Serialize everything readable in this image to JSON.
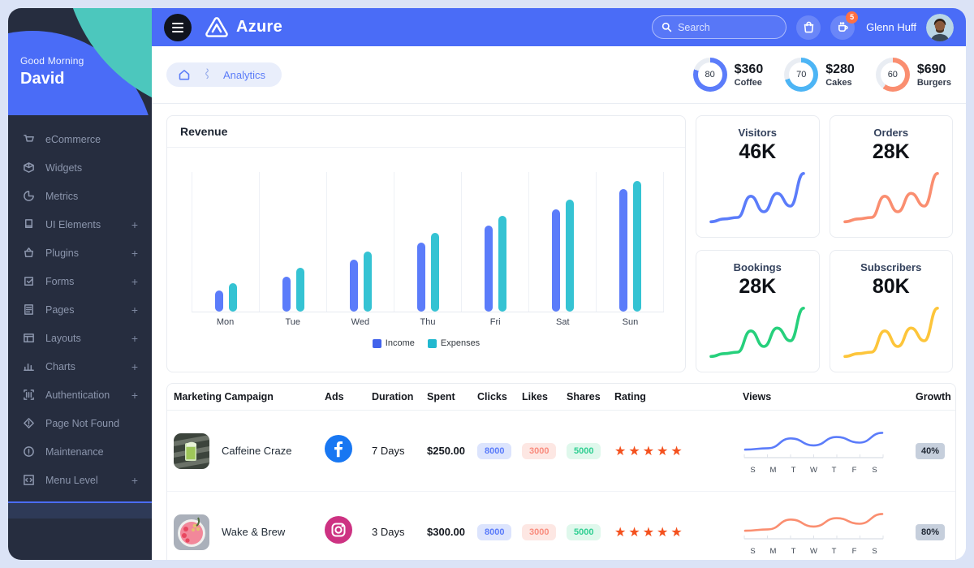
{
  "topbar": {
    "brand": "Azure",
    "search_placeholder": "Search",
    "cart_badge": "5",
    "user_name": "Glenn Huff"
  },
  "sidebar": {
    "greeting": "Good Morning",
    "user": "David",
    "items": [
      {
        "label": "eCommerce",
        "expandable": false
      },
      {
        "label": "Widgets",
        "expandable": false
      },
      {
        "label": "Metrics",
        "expandable": false
      },
      {
        "label": "UI Elements",
        "expandable": true
      },
      {
        "label": "Plugins",
        "expandable": true
      },
      {
        "label": "Forms",
        "expandable": true
      },
      {
        "label": "Pages",
        "expandable": true
      },
      {
        "label": "Layouts",
        "expandable": true
      },
      {
        "label": "Charts",
        "expandable": true
      },
      {
        "label": "Authentication",
        "expandable": true
      },
      {
        "label": "Page Not Found",
        "expandable": false
      },
      {
        "label": "Maintenance",
        "expandable": false
      },
      {
        "label": "Menu Level",
        "expandable": true
      }
    ],
    "plus_glyph": "+"
  },
  "breadcrumb": {
    "page": "Analytics"
  },
  "summary_donuts": [
    {
      "percent": 80,
      "value": "$360",
      "label": "Coffee",
      "color": "#5b7cfa"
    },
    {
      "percent": 70,
      "value": "$280",
      "label": "Cakes",
      "color": "#4db5f5"
    },
    {
      "percent": 60,
      "value": "$690",
      "label": "Burgers",
      "color": "#fa8e70"
    }
  ],
  "revenue": {
    "title": "Revenue",
    "categories": [
      "Mon",
      "Tue",
      "Wed",
      "Thu",
      "Fri",
      "Sat",
      "Sun"
    ],
    "series": [
      {
        "name": "Income",
        "color": "#4263eb",
        "bar_color": "#5b7cfa",
        "values": [
          15,
          25,
          37,
          49,
          61,
          73,
          87
        ]
      },
      {
        "name": "Expenses",
        "color": "#22b8cf",
        "bar_color": "#35c3d3",
        "values": [
          20,
          31,
          43,
          56,
          68,
          80,
          93
        ]
      }
    ],
    "max": 100
  },
  "stat_cards": [
    {
      "label": "Visitors",
      "value": "46K",
      "color": "#5b7cfa",
      "points": [
        10,
        14,
        16,
        46,
        24,
        50,
        32,
        78
      ]
    },
    {
      "label": "Orders",
      "value": "28K",
      "color": "#fa8e70",
      "points": [
        10,
        14,
        16,
        46,
        24,
        50,
        32,
        78
      ]
    },
    {
      "label": "Bookings",
      "value": "28K",
      "color": "#26d07c",
      "points": [
        10,
        14,
        16,
        46,
        24,
        50,
        32,
        78
      ]
    },
    {
      "label": "Subscribers",
      "value": "80K",
      "color": "#fdc53a",
      "points": [
        10,
        14,
        16,
        46,
        24,
        50,
        32,
        78
      ]
    }
  ],
  "table": {
    "headers": [
      "Marketing Campaign",
      "Ads",
      "Duration",
      "Spent",
      "Clicks",
      "Likes",
      "Shares",
      "Rating",
      "Views",
      "Growth"
    ],
    "days": [
      "S",
      "M",
      "T",
      "W",
      "T",
      "F",
      "S"
    ],
    "badge_styles": {
      "clicks": {
        "bg": "#dce4fd",
        "fg": "#5b7cfa"
      },
      "likes": {
        "bg": "#fde7e3",
        "fg": "#f98d7f"
      },
      "shares": {
        "bg": "#dff8ec",
        "fg": "#2fcf92"
      }
    },
    "star_color": "#f4511e",
    "rows": [
      {
        "name": "Caffeine Craze",
        "network": "facebook",
        "duration": "7 Days",
        "spent": "$250.00",
        "clicks": "8000",
        "likes": "3000",
        "shares": "5000",
        "rating": 5,
        "growth": "40%",
        "spark_color": "#5b7cfa",
        "views_points": [
          8,
          10,
          24,
          14,
          26,
          18,
          32
        ]
      },
      {
        "name": "Wake & Brew",
        "network": "instagram",
        "duration": "3 Days",
        "spent": "$300.00",
        "clicks": "8000",
        "likes": "3000",
        "shares": "5000",
        "rating": 5,
        "growth": "80%",
        "spark_color": "#fa8e70",
        "views_points": [
          8,
          10,
          24,
          14,
          26,
          18,
          32
        ]
      }
    ]
  },
  "chart_data": [
    {
      "type": "bar",
      "title": "Revenue",
      "categories": [
        "Mon",
        "Tue",
        "Wed",
        "Thu",
        "Fri",
        "Sat",
        "Sun"
      ],
      "series": [
        {
          "name": "Income",
          "values": [
            15,
            25,
            37,
            49,
            61,
            73,
            87
          ]
        },
        {
          "name": "Expenses",
          "values": [
            20,
            31,
            43,
            56,
            68,
            80,
            93
          ]
        }
      ],
      "xlabel": "",
      "ylabel": "",
      "ylim": [
        0,
        100
      ],
      "grid": "vertical",
      "legend_position": "bottom"
    },
    {
      "type": "pie",
      "title": "Coffee",
      "values": [
        80,
        20
      ],
      "labels": [
        "done",
        "rest"
      ],
      "center_label": "80",
      "amount": "$360"
    },
    {
      "type": "pie",
      "title": "Cakes",
      "values": [
        70,
        30
      ],
      "labels": [
        "done",
        "rest"
      ],
      "center_label": "70",
      "amount": "$280"
    },
    {
      "type": "pie",
      "title": "Burgers",
      "values": [
        60,
        40
      ],
      "labels": [
        "done",
        "rest"
      ],
      "center_label": "60",
      "amount": "$690"
    },
    {
      "type": "line",
      "title": "Visitors",
      "x": [
        1,
        2,
        3,
        4,
        5,
        6,
        7,
        8
      ],
      "values": [
        10,
        14,
        16,
        46,
        24,
        50,
        32,
        78
      ]
    },
    {
      "type": "line",
      "title": "Orders",
      "x": [
        1,
        2,
        3,
        4,
        5,
        6,
        7,
        8
      ],
      "values": [
        10,
        14,
        16,
        46,
        24,
        50,
        32,
        78
      ]
    },
    {
      "type": "line",
      "title": "Bookings",
      "x": [
        1,
        2,
        3,
        4,
        5,
        6,
        7,
        8
      ],
      "values": [
        10,
        14,
        16,
        46,
        24,
        50,
        32,
        78
      ]
    },
    {
      "type": "line",
      "title": "Subscribers",
      "x": [
        1,
        2,
        3,
        4,
        5,
        6,
        7,
        8
      ],
      "values": [
        10,
        14,
        16,
        46,
        24,
        50,
        32,
        78
      ]
    },
    {
      "type": "line",
      "title": "Caffeine Craze views",
      "categories": [
        "S",
        "M",
        "T",
        "W",
        "T",
        "F",
        "S"
      ],
      "values": [
        8,
        10,
        24,
        14,
        26,
        18,
        32
      ]
    },
    {
      "type": "line",
      "title": "Wake & Brew views",
      "categories": [
        "S",
        "M",
        "T",
        "W",
        "T",
        "F",
        "S"
      ],
      "values": [
        8,
        10,
        24,
        14,
        26,
        18,
        32
      ]
    }
  ]
}
